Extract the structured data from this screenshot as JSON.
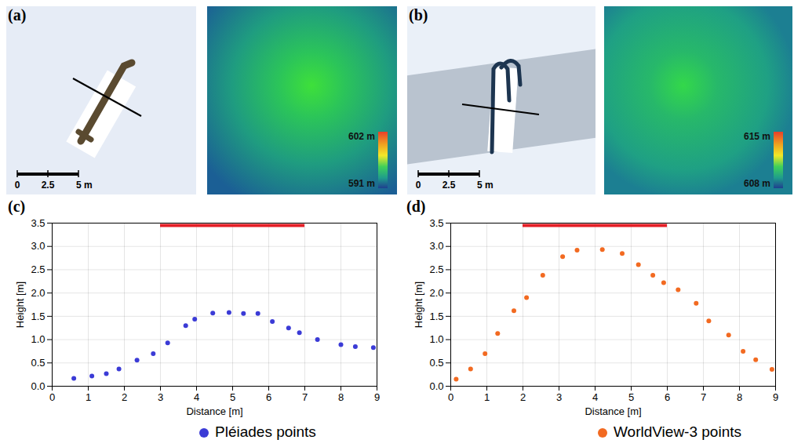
{
  "image_panels": [
    {
      "letter": "(a)",
      "scale_bar": {
        "ticks": [
          0,
          2.5,
          {
            "value": 5,
            "label": "5 m"
          }
        ]
      },
      "colorbar": {
        "range": [
          591,
          602
        ],
        "ticks": [
          {
            "value": 591,
            "label": "591 m"
          },
          {
            "value": 602,
            "label": "602 m"
          }
        ]
      }
    },
    {
      "letter": "(b)",
      "scale_bar": {
        "ticks": [
          0,
          2.5,
          {
            "value": 5,
            "label": "5 m"
          }
        ]
      },
      "colorbar": {
        "range": [
          608,
          615
        ],
        "ticks": [
          {
            "value": 608,
            "label": "608 m"
          },
          {
            "value": 615,
            "label": "615 m"
          }
        ]
      }
    }
  ],
  "chart_data": [
    {
      "type": "scatter",
      "title": "(c)",
      "x_label": "Distance [m]",
      "y_label": "Height [m]",
      "xlim": [
        0,
        9
      ],
      "xticks": [
        0,
        1,
        2,
        3,
        4,
        5,
        6,
        7,
        8,
        9
      ],
      "ylim": [
        0,
        3.5
      ],
      "yticks": [
        {
          "value": 0,
          "label": "0.0"
        },
        0.5,
        {
          "value": 1,
          "label": "1.0"
        },
        1.5,
        {
          "value": 2,
          "label": "2.0"
        },
        2.5,
        {
          "value": 3,
          "label": "3.0"
        },
        3.5
      ],
      "grid": true,
      "legend": "bottom",
      "highlight": {
        "x": [
          3,
          7
        ],
        "y": 3.45,
        "color": "#e41e26"
      },
      "series": [
        {
          "name": "Pléiades points",
          "color": "#3b3bd6",
          "marker": "circle",
          "x": [
            0.6,
            1.1,
            1.5,
            1.85,
            2.35,
            2.8,
            3.2,
            3.7,
            3.95,
            4.45,
            4.9,
            5.3,
            5.7,
            6.1,
            6.55,
            6.85,
            7.35,
            8.0,
            8.4,
            8.9
          ],
          "values": [
            0.17,
            0.22,
            0.27,
            0.37,
            0.56,
            0.7,
            0.93,
            1.3,
            1.44,
            1.57,
            1.58,
            1.56,
            1.56,
            1.39,
            1.25,
            1.15,
            1.0,
            0.89,
            0.85,
            0.83
          ]
        }
      ]
    },
    {
      "type": "scatter",
      "title": "(d)",
      "x_label": "Distance [m]",
      "y_label": "Height [m]",
      "xlim": [
        0,
        9
      ],
      "xticks": [
        0,
        1,
        2,
        3,
        4,
        5,
        6,
        7,
        8,
        9
      ],
      "ylim": [
        0,
        3.5
      ],
      "yticks": [
        {
          "value": 0,
          "label": "0.0"
        },
        0.5,
        {
          "value": 1,
          "label": "1.0"
        },
        1.5,
        {
          "value": 2,
          "label": "2.0"
        },
        2.5,
        {
          "value": 3,
          "label": "3.0"
        },
        3.5
      ],
      "grid": true,
      "legend": "bottom",
      "highlight": {
        "x": [
          2,
          6
        ],
        "y": 3.45,
        "color": "#e41e26"
      },
      "series": [
        {
          "name": "WorldView-3 points",
          "color": "#f26a21",
          "marker": "circle",
          "x": [
            0.15,
            0.55,
            0.95,
            1.3,
            1.75,
            2.1,
            2.55,
            3.1,
            3.5,
            4.2,
            4.75,
            5.2,
            5.6,
            5.9,
            6.3,
            6.8,
            7.15,
            7.7,
            8.1,
            8.45,
            8.9
          ],
          "values": [
            0.15,
            0.37,
            0.7,
            1.13,
            1.62,
            1.9,
            2.38,
            2.78,
            2.92,
            2.93,
            2.85,
            2.61,
            2.38,
            2.22,
            2.07,
            1.78,
            1.4,
            1.1,
            0.75,
            0.57,
            0.36
          ]
        }
      ]
    }
  ]
}
